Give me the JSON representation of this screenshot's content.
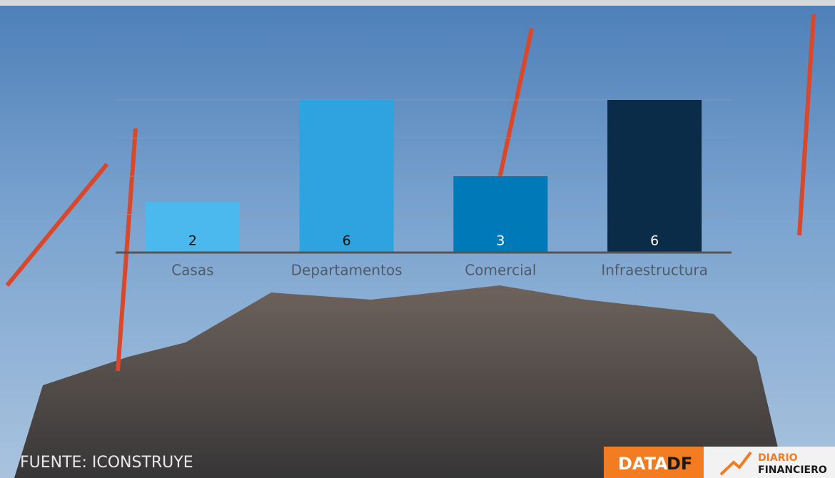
{
  "chart_data": {
    "type": "bar",
    "categories": [
      "Casas",
      "Departamentos",
      "Comercial",
      "Infraestructura"
    ],
    "values": [
      2,
      6,
      3,
      6
    ],
    "colors": [
      "#4bb8ee",
      "#2ea3df",
      "#0079b8",
      "#0b2c48"
    ],
    "value_label_colors": [
      "#111111",
      "#111111",
      "#ffffff",
      "#ffffff"
    ],
    "ylim": [
      0,
      6
    ],
    "yticks": [
      0,
      1.5,
      3,
      4.5,
      6
    ],
    "grid": true,
    "source": "FUENTE: ICONSTRUYE"
  },
  "logo": {
    "data": "DATA",
    "df": "DF",
    "brand_line1": "DIARIO",
    "brand_line2": "FINANCIERO"
  }
}
